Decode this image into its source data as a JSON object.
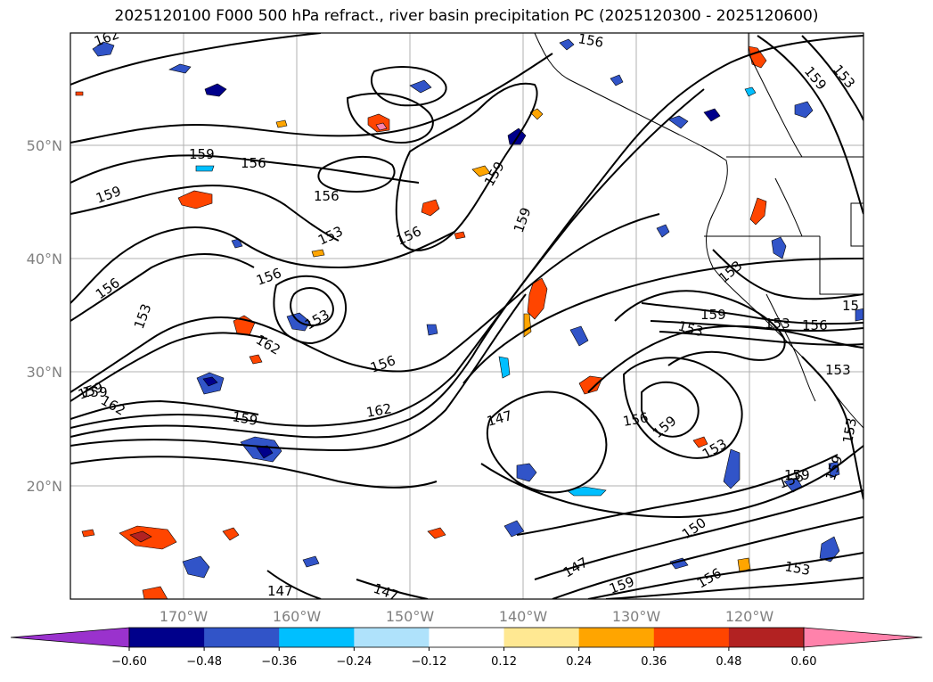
{
  "title": "2025120100 F000 500 hPa refract., river basin precipitation PC (2025120300 - 2025120600)",
  "map": {
    "lat_labels": [
      "50°N",
      "40°N",
      "30°N",
      "20°N"
    ],
    "lon_labels": [
      "170°W",
      "160°W",
      "150°W",
      "140°W",
      "130°W",
      "120°W"
    ],
    "contour_labels": [
      "162",
      "159",
      "156",
      "159",
      "156",
      "153",
      "156",
      "159",
      "156",
      "153",
      "156",
      "159",
      "153",
      "153",
      "159",
      "162",
      "159",
      "156",
      "153",
      "159",
      "156",
      "153",
      "153",
      "162",
      "159",
      "156",
      "162",
      "147",
      "156",
      "159",
      "153",
      "156",
      "153",
      "150",
      "147",
      "159",
      "156",
      "153",
      "147",
      "147",
      "159",
      "153",
      "159",
      "159",
      "153",
      "15",
      "156"
    ]
  },
  "colorbar": {
    "ticks": [
      "−0.60",
      "−0.48",
      "−0.36",
      "−0.24",
      "−0.12",
      "0.12",
      "0.24",
      "0.36",
      "0.48",
      "0.60"
    ],
    "levels": [
      -0.6,
      -0.48,
      -0.36,
      -0.24,
      -0.12,
      0.12,
      0.24,
      0.36,
      0.48,
      0.6
    ],
    "colors": [
      "#9a32cd",
      "#00008b",
      "#3154c8",
      "#00bfff",
      "#afe2fb",
      "#ffffff",
      "#ffe892",
      "#ffa500",
      "#ff4500",
      "#b22222",
      "#ff82ab"
    ]
  }
}
